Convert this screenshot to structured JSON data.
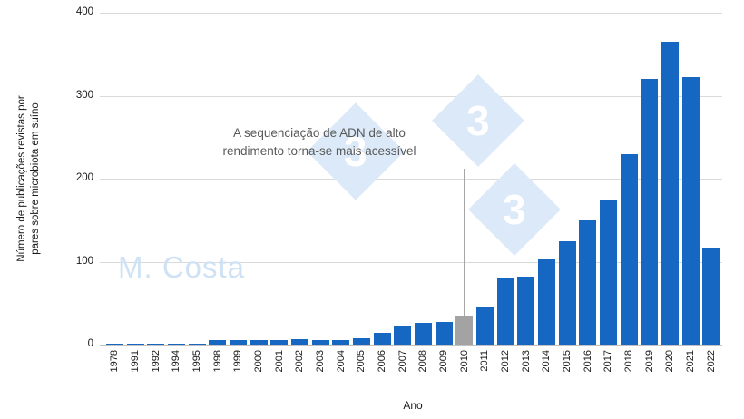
{
  "watermark": {
    "author": "M. Costa",
    "logo_char": "3",
    "diamond_color": "#dbe9f8",
    "name_color": "#cfe2f5"
  },
  "chart_data": {
    "type": "bar",
    "title": "",
    "xlabel": "Ano",
    "ylabel": "Número de publicações revistas por pares sobre microbiota em suíno",
    "ylabel_lines": [
      "Número de publicações revistas por",
      "pares sobre microbiota em suíno"
    ],
    "ylim": [
      0,
      400
    ],
    "yticks": [
      0,
      100,
      200,
      300,
      400
    ],
    "grid": true,
    "legend": "none",
    "bar_color": "#1667c2",
    "highlight_color": "#a3a3a3",
    "highlight_category": "2010",
    "annotation": {
      "line1": "A sequenciação de ADN de alto",
      "line2": "rendimento torna-se mais acessível",
      "target_category": "2010",
      "line_color": "#a6a6a6"
    },
    "categories": [
      "1978",
      "1991",
      "1992",
      "1994",
      "1995",
      "1998",
      "1999",
      "2000",
      "2001",
      "2002",
      "2003",
      "2004",
      "2005",
      "2006",
      "2007",
      "2008",
      "2009",
      "2010",
      "2011",
      "2012",
      "2013",
      "2014",
      "2015",
      "2016",
      "2017",
      "2018",
      "2019",
      "2020",
      "2021",
      "2022"
    ],
    "values": [
      1,
      1,
      1,
      1,
      1,
      5,
      5,
      5,
      5,
      7,
      5,
      5,
      8,
      14,
      23,
      26,
      27,
      35,
      45,
      80,
      82,
      103,
      125,
      150,
      175,
      230,
      320,
      365,
      322,
      117
    ]
  }
}
